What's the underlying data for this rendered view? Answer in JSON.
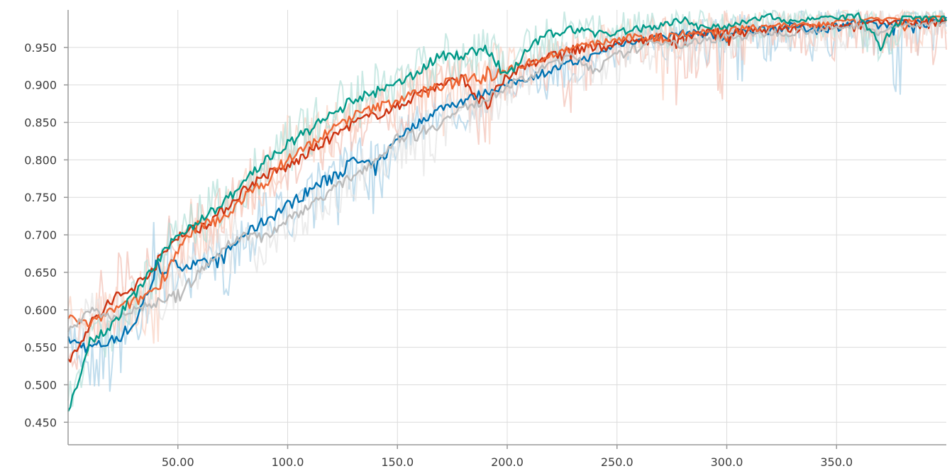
{
  "chart_data": {
    "type": "line",
    "title": "",
    "xlabel": "",
    "ylabel": "",
    "xlim": [
      0,
      400
    ],
    "ylim": [
      0.42,
      1.0
    ],
    "x_ticks": [
      50,
      100,
      150,
      200,
      250,
      300,
      350
    ],
    "x_tick_labels": [
      "50.00",
      "100.0",
      "150.0",
      "200.0",
      "250.0",
      "300.0",
      "350.0"
    ],
    "y_ticks": [
      0.45,
      0.5,
      0.55,
      0.6,
      0.65,
      0.7,
      0.75,
      0.8,
      0.85,
      0.9,
      0.95
    ],
    "y_tick_labels": [
      "0.450",
      "0.500",
      "0.550",
      "0.600",
      "0.650",
      "0.700",
      "0.750",
      "0.800",
      "0.850",
      "0.900",
      "0.950"
    ],
    "grid": true,
    "legend": "none",
    "x": [
      0,
      10,
      20,
      30,
      40,
      50,
      60,
      70,
      80,
      90,
      100,
      110,
      120,
      130,
      140,
      150,
      160,
      170,
      180,
      190,
      200,
      210,
      220,
      230,
      240,
      250,
      260,
      270,
      280,
      290,
      300,
      310,
      320,
      330,
      340,
      350,
      360,
      370,
      380,
      390,
      400
    ],
    "series": [
      {
        "color": "#0072b2",
        "raw_color": "#a6cfe5",
        "smoothed": [
          0.56,
          0.55,
          0.56,
          0.58,
          0.65,
          0.66,
          0.66,
          0.67,
          0.7,
          0.72,
          0.74,
          0.76,
          0.78,
          0.8,
          0.79,
          0.83,
          0.85,
          0.87,
          0.88,
          0.89,
          0.9,
          0.91,
          0.92,
          0.93,
          0.94,
          0.955,
          0.96,
          0.965,
          0.97,
          0.97,
          0.965,
          0.975,
          0.975,
          0.98,
          0.975,
          0.98,
          0.985,
          0.98,
          0.985,
          0.985,
          0.99
        ],
        "raw_max": [
          0.59,
          0.58,
          0.6,
          0.62,
          0.77,
          0.7,
          0.7,
          0.71,
          0.73,
          0.76,
          0.78,
          0.8,
          0.81,
          0.83,
          0.83,
          0.86,
          0.88,
          0.9,
          0.91,
          0.92,
          0.93,
          0.94,
          0.95,
          0.96,
          0.96,
          0.97,
          0.98,
          0.98,
          0.99,
          0.99,
          0.99,
          1.0,
          1.0,
          1.0,
          1.0,
          1.0,
          1.0,
          1.0,
          1.0,
          1.0,
          1.0
        ],
        "raw_min": [
          0.53,
          0.49,
          0.48,
          0.54,
          0.6,
          0.62,
          0.59,
          0.6,
          0.66,
          0.67,
          0.69,
          0.71,
          0.7,
          0.74,
          0.72,
          0.8,
          0.82,
          0.84,
          0.83,
          0.86,
          0.87,
          0.88,
          0.88,
          0.89,
          0.91,
          0.92,
          0.93,
          0.93,
          0.94,
          0.93,
          0.86,
          0.92,
          0.93,
          0.94,
          0.93,
          0.93,
          0.94,
          0.93,
          0.86,
          0.93,
          0.94
        ]
      },
      {
        "color": "#cc3311",
        "raw_color": "#f2c1b5",
        "smoothed": [
          0.53,
          0.58,
          0.61,
          0.63,
          0.66,
          0.7,
          0.71,
          0.73,
          0.76,
          0.78,
          0.79,
          0.81,
          0.83,
          0.85,
          0.86,
          0.87,
          0.89,
          0.9,
          0.91,
          0.87,
          0.91,
          0.93,
          0.94,
          0.95,
          0.95,
          0.955,
          0.96,
          0.965,
          0.96,
          0.97,
          0.97,
          0.975,
          0.975,
          0.975,
          0.98,
          0.98,
          0.98,
          0.985,
          0.985,
          0.985,
          0.985
        ],
        "raw_max": [
          0.56,
          0.62,
          0.7,
          0.67,
          0.71,
          0.74,
          0.76,
          0.77,
          0.8,
          0.82,
          0.84,
          0.85,
          0.86,
          0.88,
          0.9,
          0.91,
          0.93,
          0.93,
          0.94,
          0.93,
          0.95,
          0.96,
          0.96,
          0.97,
          0.98,
          0.98,
          0.99,
          0.99,
          0.99,
          1.0,
          1.0,
          1.0,
          1.0,
          1.0,
          1.0,
          1.0,
          1.0,
          1.0,
          1.0,
          1.0,
          1.0
        ],
        "raw_min": [
          0.5,
          0.54,
          0.56,
          0.59,
          0.62,
          0.66,
          0.66,
          0.69,
          0.72,
          0.74,
          0.75,
          0.77,
          0.79,
          0.81,
          0.82,
          0.83,
          0.85,
          0.86,
          0.86,
          0.8,
          0.87,
          0.89,
          0.88,
          0.83,
          0.91,
          0.92,
          0.93,
          0.89,
          0.86,
          0.93,
          0.86,
          0.93,
          0.93,
          0.93,
          0.94,
          0.93,
          0.93,
          0.94,
          0.94,
          0.89,
          0.94
        ]
      },
      {
        "color": "#ee6633",
        "raw_color": "#fad2c2",
        "smoothed": [
          0.59,
          0.58,
          0.6,
          0.61,
          0.63,
          0.68,
          0.71,
          0.72,
          0.75,
          0.77,
          0.8,
          0.82,
          0.84,
          0.86,
          0.87,
          0.88,
          0.89,
          0.9,
          0.91,
          0.92,
          0.92,
          0.93,
          0.94,
          0.95,
          0.955,
          0.96,
          0.965,
          0.965,
          0.97,
          0.97,
          0.975,
          0.975,
          0.98,
          0.98,
          0.98,
          0.985,
          0.985,
          0.99,
          0.985,
          0.99,
          0.99
        ],
        "raw_max": [
          0.62,
          0.62,
          0.63,
          0.65,
          0.66,
          0.73,
          0.78,
          0.76,
          0.79,
          0.81,
          0.86,
          0.86,
          0.88,
          0.89,
          0.9,
          0.92,
          0.93,
          0.94,
          0.94,
          0.96,
          0.95,
          0.96,
          0.97,
          0.98,
          0.98,
          0.99,
          0.99,
          0.99,
          1.0,
          1.0,
          1.0,
          1.0,
          1.0,
          1.0,
          1.0,
          1.0,
          1.0,
          1.0,
          1.0,
          1.0,
          1.0
        ],
        "raw_min": [
          0.56,
          0.55,
          0.56,
          0.57,
          0.54,
          0.64,
          0.66,
          0.68,
          0.71,
          0.73,
          0.76,
          0.78,
          0.8,
          0.82,
          0.83,
          0.84,
          0.85,
          0.8,
          0.87,
          0.8,
          0.88,
          0.9,
          0.91,
          0.92,
          0.93,
          0.93,
          0.94,
          0.87,
          0.94,
          0.94,
          0.86,
          0.94,
          0.95,
          0.95,
          0.95,
          0.95,
          0.96,
          0.96,
          0.89,
          0.96,
          0.96
        ]
      },
      {
        "color": "#bbbbbb",
        "raw_color": "#e4e4e4",
        "smoothed": [
          0.57,
          0.6,
          0.59,
          0.6,
          0.61,
          0.62,
          0.65,
          0.68,
          0.7,
          0.7,
          0.72,
          0.74,
          0.76,
          0.78,
          0.8,
          0.83,
          0.84,
          0.85,
          0.87,
          0.88,
          0.9,
          0.91,
          0.93,
          0.94,
          0.92,
          0.94,
          0.95,
          0.96,
          0.955,
          0.96,
          0.965,
          0.965,
          0.97,
          0.97,
          0.975,
          0.975,
          0.98,
          0.97,
          0.98,
          0.98,
          0.985
        ],
        "raw_max": [
          0.6,
          0.63,
          0.62,
          0.63,
          0.64,
          0.66,
          0.69,
          0.72,
          0.74,
          0.73,
          0.75,
          0.77,
          0.79,
          0.81,
          0.83,
          0.86,
          0.87,
          0.88,
          0.9,
          0.91,
          0.93,
          0.94,
          0.95,
          0.96,
          0.95,
          0.97,
          0.98,
          0.98,
          0.98,
          0.99,
          0.99,
          0.99,
          1.0,
          1.0,
          1.0,
          1.0,
          1.0,
          1.0,
          1.0,
          1.0,
          1.0
        ],
        "raw_min": [
          0.54,
          0.57,
          0.56,
          0.57,
          0.57,
          0.55,
          0.61,
          0.64,
          0.66,
          0.63,
          0.68,
          0.7,
          0.72,
          0.74,
          0.76,
          0.79,
          0.75,
          0.81,
          0.83,
          0.84,
          0.86,
          0.87,
          0.89,
          0.9,
          0.88,
          0.9,
          0.91,
          0.92,
          0.91,
          0.92,
          0.93,
          0.93,
          0.94,
          0.94,
          0.94,
          0.94,
          0.95,
          0.94,
          0.95,
          0.95,
          0.95
        ]
      },
      {
        "color": "#009988",
        "raw_color": "#b3dfd9",
        "smoothed": [
          0.46,
          0.56,
          0.58,
          0.62,
          0.66,
          0.7,
          0.72,
          0.74,
          0.77,
          0.8,
          0.82,
          0.84,
          0.86,
          0.88,
          0.89,
          0.9,
          0.92,
          0.94,
          0.94,
          0.95,
          0.91,
          0.95,
          0.97,
          0.975,
          0.97,
          0.97,
          0.975,
          0.98,
          0.99,
          0.975,
          0.98,
          0.985,
          0.995,
          0.985,
          0.99,
          0.99,
          0.995,
          0.95,
          0.99,
          0.99,
          0.99
        ],
        "raw_max": [
          0.5,
          0.59,
          0.61,
          0.66,
          0.7,
          0.74,
          0.76,
          0.78,
          0.81,
          0.84,
          0.86,
          0.88,
          0.9,
          0.92,
          0.93,
          0.94,
          0.96,
          0.97,
          0.98,
          0.98,
          0.95,
          0.98,
          1.0,
          1.0,
          1.0,
          1.0,
          1.0,
          1.0,
          1.0,
          1.0,
          1.0,
          1.0,
          1.0,
          1.0,
          1.0,
          1.0,
          1.0,
          1.0,
          1.0,
          1.0,
          1.0
        ],
        "raw_min": [
          0.45,
          0.52,
          0.54,
          0.58,
          0.62,
          0.66,
          0.68,
          0.7,
          0.73,
          0.76,
          0.78,
          0.8,
          0.82,
          0.84,
          0.85,
          0.86,
          0.88,
          0.9,
          0.9,
          0.91,
          0.87,
          0.91,
          0.93,
          0.94,
          0.93,
          0.93,
          0.94,
          0.95,
          0.95,
          0.94,
          0.95,
          0.95,
          0.96,
          0.95,
          0.96,
          0.96,
          0.96,
          0.9,
          0.96,
          0.96,
          0.96
        ]
      }
    ]
  }
}
